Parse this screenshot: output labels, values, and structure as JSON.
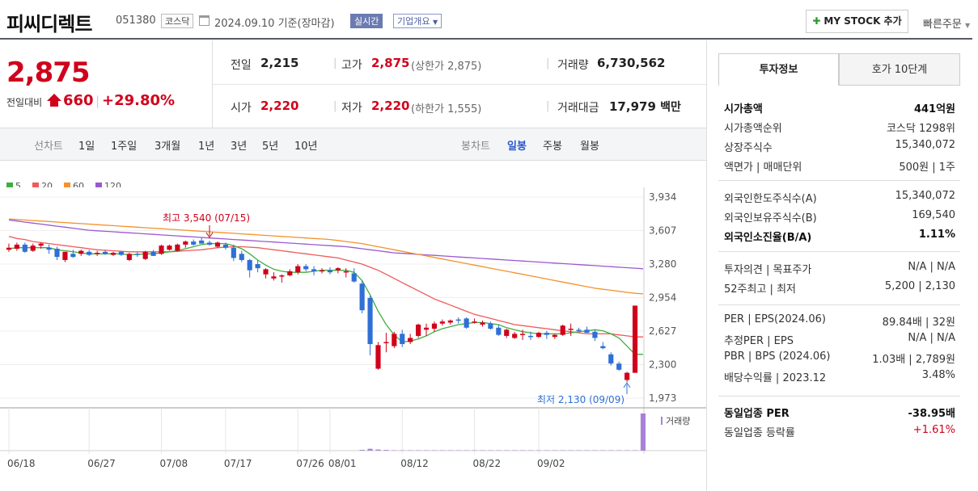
{
  "header": {
    "name": "피씨디렉트",
    "code": "051380",
    "market": "코스닥",
    "date": "2024.09.10",
    "basis": "기준(장마감)",
    "realtime_label": "실시간",
    "corp_label": "기업개요",
    "mystock_label": "MY STOCK 추가",
    "quick_label": "빠른주문"
  },
  "quote": {
    "price": "2,875",
    "change_label": "전일대비",
    "change": "660",
    "change_pct": "+29.80%",
    "prev_close_label": "전일",
    "prev_close": "2,215",
    "high_label": "고가",
    "high": "2,875",
    "upper_limit_label": "(상한가",
    "upper_limit": "2,875)",
    "volume_label": "거래량",
    "volume": "6,730,562",
    "open_label": "시가",
    "open": "2,220",
    "low_label": "저가",
    "low": "2,220",
    "lower_limit_label": "(하한가",
    "lower_limit": "1,555)",
    "amount_label": "거래대금",
    "amount": "17,979",
    "amount_unit": "백만"
  },
  "period_bar": {
    "line_label": "선차트",
    "line_items": [
      "1일",
      "1주일",
      "3개월",
      "1년",
      "3년",
      "5년",
      "10년"
    ],
    "candle_label": "봉차트",
    "candle_items": [
      "일봉",
      "주봉",
      "월봉"
    ],
    "active_candle": "일봉"
  },
  "colors": {
    "up": "#d0021b",
    "down": "#2f6fd6",
    "ma5": "#3fae3f",
    "ma20": "#f05a5a",
    "ma60": "#f4922b",
    "ma120": "#9b59d0",
    "volume": "#a882d6"
  },
  "chart_data": {
    "type": "candlestick",
    "legend": [
      {
        "name": "5",
        "color": "#3fae3f"
      },
      {
        "name": "20",
        "color": "#f05a5a"
      },
      {
        "name": "60",
        "color": "#f4922b"
      },
      {
        "name": "120",
        "color": "#9b59d0"
      }
    ],
    "y_ticks": [
      "3,934",
      "3,607",
      "3,280",
      "2,954",
      "2,627",
      "2,300",
      "1,973"
    ],
    "ylim": [
      1973,
      3934
    ],
    "x_ticks": [
      "06/18",
      "06/27",
      "07/08",
      "07/17",
      "07/26",
      "08/01",
      "08/12",
      "08/22",
      "09/02"
    ],
    "annotations": {
      "high": "최고 3,540 (07/15)",
      "low": "최저 2,130 (09/09)"
    },
    "volume_label": "거래량",
    "candles": [
      {
        "o": 3420,
        "h": 3480,
        "l": 3400,
        "c": 3440
      },
      {
        "o": 3430,
        "h": 3490,
        "l": 3410,
        "c": 3470
      },
      {
        "o": 3470,
        "h": 3490,
        "l": 3390,
        "c": 3400
      },
      {
        "o": 3410,
        "h": 3480,
        "l": 3400,
        "c": 3460
      },
      {
        "o": 3460,
        "h": 3490,
        "l": 3430,
        "c": 3480
      },
      {
        "o": 3440,
        "h": 3470,
        "l": 3380,
        "c": 3420
      },
      {
        "o": 3430,
        "h": 3450,
        "l": 3320,
        "c": 3350
      },
      {
        "o": 3320,
        "h": 3400,
        "l": 3300,
        "c": 3400
      },
      {
        "o": 3380,
        "h": 3420,
        "l": 3340,
        "c": 3350
      },
      {
        "o": 3380,
        "h": 3420,
        "l": 3360,
        "c": 3410
      },
      {
        "o": 3400,
        "h": 3420,
        "l": 3360,
        "c": 3370
      },
      {
        "o": 3380,
        "h": 3410,
        "l": 3360,
        "c": 3390
      },
      {
        "o": 3400,
        "h": 3420,
        "l": 3370,
        "c": 3380
      },
      {
        "o": 3370,
        "h": 3400,
        "l": 3360,
        "c": 3390
      },
      {
        "o": 3400,
        "h": 3410,
        "l": 3360,
        "c": 3370
      },
      {
        "o": 3320,
        "h": 3390,
        "l": 3310,
        "c": 3380
      },
      {
        "o": 3380,
        "h": 3400,
        "l": 3350,
        "c": 3370
      },
      {
        "o": 3330,
        "h": 3410,
        "l": 3320,
        "c": 3400
      },
      {
        "o": 3400,
        "h": 3420,
        "l": 3360,
        "c": 3360
      },
      {
        "o": 3380,
        "h": 3470,
        "l": 3370,
        "c": 3460
      },
      {
        "o": 3420,
        "h": 3470,
        "l": 3410,
        "c": 3460
      },
      {
        "o": 3410,
        "h": 3480,
        "l": 3400,
        "c": 3470
      },
      {
        "o": 3470,
        "h": 3510,
        "l": 3440,
        "c": 3500
      },
      {
        "o": 3500,
        "h": 3520,
        "l": 3460,
        "c": 3470
      },
      {
        "o": 3510,
        "h": 3540,
        "l": 3480,
        "c": 3480
      },
      {
        "o": 3490,
        "h": 3510,
        "l": 3460,
        "c": 3470
      },
      {
        "o": 3450,
        "h": 3500,
        "l": 3440,
        "c": 3490
      },
      {
        "o": 3470,
        "h": 3490,
        "l": 3420,
        "c": 3440
      },
      {
        "o": 3440,
        "h": 3470,
        "l": 3310,
        "c": 3340
      },
      {
        "o": 3380,
        "h": 3410,
        "l": 3300,
        "c": 3320
      },
      {
        "o": 3320,
        "h": 3330,
        "l": 3150,
        "c": 3220
      },
      {
        "o": 3280,
        "h": 3320,
        "l": 3200,
        "c": 3240
      },
      {
        "o": 3180,
        "h": 3240,
        "l": 3140,
        "c": 3230
      },
      {
        "o": 3140,
        "h": 3200,
        "l": 3120,
        "c": 3160
      },
      {
        "o": 3160,
        "h": 3180,
        "l": 3100,
        "c": 3170
      },
      {
        "o": 3170,
        "h": 3230,
        "l": 3160,
        "c": 3210
      },
      {
        "o": 3200,
        "h": 3280,
        "l": 3180,
        "c": 3260
      },
      {
        "o": 3260,
        "h": 3280,
        "l": 3210,
        "c": 3230
      },
      {
        "o": 3230,
        "h": 3260,
        "l": 3170,
        "c": 3210
      },
      {
        "o": 3210,
        "h": 3240,
        "l": 3190,
        "c": 3220
      },
      {
        "o": 3220,
        "h": 3250,
        "l": 3180,
        "c": 3200
      },
      {
        "o": 3220,
        "h": 3250,
        "l": 3190,
        "c": 3240
      },
      {
        "o": 3200,
        "h": 3240,
        "l": 3150,
        "c": 3210
      },
      {
        "o": 3190,
        "h": 3240,
        "l": 3100,
        "c": 3110
      },
      {
        "o": 3090,
        "h": 3120,
        "l": 2800,
        "c": 2830
      },
      {
        "o": 2950,
        "h": 2970,
        "l": 2390,
        "c": 2500
      },
      {
        "o": 2260,
        "h": 2520,
        "l": 2250,
        "c": 2490
      },
      {
        "o": 2520,
        "h": 2610,
        "l": 2420,
        "c": 2520
      },
      {
        "o": 2480,
        "h": 2620,
        "l": 2460,
        "c": 2600
      },
      {
        "o": 2600,
        "h": 2640,
        "l": 2470,
        "c": 2500
      },
      {
        "o": 2520,
        "h": 2600,
        "l": 2500,
        "c": 2560
      },
      {
        "o": 2580,
        "h": 2700,
        "l": 2560,
        "c": 2690
      },
      {
        "o": 2640,
        "h": 2700,
        "l": 2580,
        "c": 2660
      },
      {
        "o": 2650,
        "h": 2720,
        "l": 2620,
        "c": 2700
      },
      {
        "o": 2700,
        "h": 2740,
        "l": 2680,
        "c": 2720
      },
      {
        "o": 2710,
        "h": 2740,
        "l": 2690,
        "c": 2730
      },
      {
        "o": 2740,
        "h": 2760,
        "l": 2700,
        "c": 2730
      },
      {
        "o": 2750,
        "h": 2760,
        "l": 2650,
        "c": 2660
      },
      {
        "o": 2720,
        "h": 2750,
        "l": 2700,
        "c": 2720
      },
      {
        "o": 2690,
        "h": 2730,
        "l": 2670,
        "c": 2710
      },
      {
        "o": 2700,
        "h": 2720,
        "l": 2640,
        "c": 2650
      },
      {
        "o": 2660,
        "h": 2690,
        "l": 2580,
        "c": 2590
      },
      {
        "o": 2580,
        "h": 2650,
        "l": 2560,
        "c": 2640
      },
      {
        "o": 2560,
        "h": 2620,
        "l": 2550,
        "c": 2600
      },
      {
        "o": 2590,
        "h": 2640,
        "l": 2540,
        "c": 2600
      },
      {
        "o": 2580,
        "h": 2620,
        "l": 2540,
        "c": 2570
      },
      {
        "o": 2570,
        "h": 2620,
        "l": 2560,
        "c": 2610
      },
      {
        "o": 2610,
        "h": 2630,
        "l": 2550,
        "c": 2590
      },
      {
        "o": 2570,
        "h": 2600,
        "l": 2550,
        "c": 2590
      },
      {
        "o": 2590,
        "h": 2690,
        "l": 2580,
        "c": 2680
      },
      {
        "o": 2650,
        "h": 2700,
        "l": 2580,
        "c": 2650
      },
      {
        "o": 2640,
        "h": 2660,
        "l": 2620,
        "c": 2630
      },
      {
        "o": 2640,
        "h": 2670,
        "l": 2610,
        "c": 2610
      },
      {
        "o": 2620,
        "h": 2640,
        "l": 2530,
        "c": 2560
      },
      {
        "o": 2480,
        "h": 2520,
        "l": 2450,
        "c": 2460
      },
      {
        "o": 2400,
        "h": 2420,
        "l": 2290,
        "c": 2310
      },
      {
        "o": 2310,
        "h": 2330,
        "l": 2240,
        "c": 2250
      },
      {
        "o": 2150,
        "h": 2230,
        "l": 2130,
        "c": 2220
      },
      {
        "o": 2220,
        "h": 2875,
        "l": 2220,
        "c": 2875
      }
    ],
    "ma5": [
      3430,
      3440,
      3440,
      3440,
      3440,
      3440,
      3420,
      3410,
      3400,
      3390,
      3380,
      3380,
      3380,
      3380,
      3380,
      3370,
      3375,
      3380,
      3380,
      3390,
      3400,
      3410,
      3430,
      3450,
      3470,
      3480,
      3480,
      3480,
      3460,
      3430,
      3380,
      3320,
      3270,
      3230,
      3210,
      3200,
      3200,
      3200,
      3210,
      3220,
      3220,
      3220,
      3220,
      3200,
      3120,
      2980,
      2820,
      2690,
      2590,
      2520,
      2530,
      2550,
      2580,
      2620,
      2650,
      2670,
      2690,
      2700,
      2710,
      2710,
      2700,
      2690,
      2660,
      2640,
      2620,
      2610,
      2600,
      2600,
      2600,
      2600,
      2610,
      2620,
      2630,
      2640,
      2630,
      2600,
      2560,
      2480,
      2400,
      2400
    ],
    "ma20": [
      3550,
      3530,
      3520,
      3500,
      3490,
      3480,
      3470,
      3460,
      3450,
      3440,
      3430,
      3420,
      3415,
      3410,
      3405,
      3400,
      3400,
      3400,
      3400,
      3400,
      3400,
      3405,
      3410,
      3415,
      3420,
      3430,
      3440,
      3445,
      3450,
      3450,
      3445,
      3440,
      3430,
      3420,
      3410,
      3400,
      3390,
      3380,
      3370,
      3360,
      3350,
      3340,
      3320,
      3300,
      3280,
      3250,
      3220,
      3180,
      3140,
      3100,
      3060,
      3020,
      2980,
      2940,
      2910,
      2880,
      2850,
      2820,
      2790,
      2770,
      2750,
      2730,
      2710,
      2690,
      2680,
      2670,
      2660,
      2650,
      2640,
      2630,
      2620,
      2610,
      2600,
      2600,
      2600,
      2600,
      2590,
      2580,
      2570,
      2570
    ],
    "ma60": [
      3720,
      3715,
      3710,
      3705,
      3700,
      3695,
      3690,
      3685,
      3680,
      3675,
      3670,
      3665,
      3660,
      3655,
      3650,
      3645,
      3640,
      3635,
      3630,
      3625,
      3620,
      3615,
      3610,
      3605,
      3600,
      3595,
      3590,
      3585,
      3580,
      3575,
      3570,
      3565,
      3560,
      3555,
      3550,
      3545,
      3540,
      3535,
      3530,
      3525,
      3520,
      3510,
      3500,
      3490,
      3480,
      3465,
      3450,
      3435,
      3420,
      3405,
      3390,
      3375,
      3360,
      3345,
      3330,
      3315,
      3300,
      3285,
      3270,
      3255,
      3240,
      3225,
      3210,
      3195,
      3180,
      3165,
      3150,
      3135,
      3120,
      3105,
      3090,
      3075,
      3060,
      3045,
      3035,
      3025,
      3015,
      3005,
      2995,
      2990
    ],
    "ma120": [
      3710,
      3700,
      3690,
      3680,
      3670,
      3660,
      3650,
      3640,
      3630,
      3620,
      3610,
      3605,
      3600,
      3595,
      3590,
      3585,
      3580,
      3575,
      3570,
      3565,
      3560,
      3555,
      3550,
      3545,
      3540,
      3535,
      3530,
      3525,
      3520,
      3515,
      3510,
      3505,
      3500,
      3495,
      3490,
      3485,
      3480,
      3475,
      3470,
      3465,
      3460,
      3455,
      3450,
      3440,
      3430,
      3420,
      3410,
      3400,
      3390,
      3385,
      3380,
      3375,
      3370,
      3365,
      3360,
      3355,
      3350,
      3345,
      3340,
      3335,
      3330,
      3325,
      3320,
      3315,
      3310,
      3305,
      3300,
      3295,
      3290,
      3285,
      3280,
      3275,
      3270,
      3265,
      3260,
      3255,
      3250,
      3245,
      3240,
      3235
    ],
    "volume": [
      0.005,
      0.005,
      0.005,
      0.005,
      0.005,
      0.005,
      0.005,
      0.005,
      0.005,
      0.005,
      0.005,
      0.005,
      0.005,
      0.005,
      0.005,
      0.005,
      0.005,
      0.005,
      0.005,
      0.005,
      0.005,
      0.005,
      0.005,
      0.005,
      0.005,
      0.005,
      0.005,
      0.005,
      0.005,
      0.005,
      0.005,
      0.005,
      0.005,
      0.005,
      0.005,
      0.005,
      0.005,
      0.005,
      0.005,
      0.005,
      0.005,
      0.005,
      0.005,
      0.005,
      0.02,
      0.05,
      0.03,
      0.02,
      0.01,
      0.01,
      0.01,
      0.01,
      0.01,
      0.01,
      0.01,
      0.01,
      0.01,
      0.01,
      0.01,
      0.01,
      0.01,
      0.01,
      0.01,
      0.01,
      0.01,
      0.01,
      0.01,
      0.01,
      0.01,
      0.01,
      0.01,
      0.01,
      0.01,
      0.01,
      0.01,
      0.01,
      0.01,
      0.01,
      0.01,
      1.0
    ]
  },
  "invest": {
    "tab_info": "투자정보",
    "tab_orderbook": "호가 10단계",
    "rows1": [
      {
        "label": "시가총액",
        "value": "441억원",
        "bold": true
      },
      {
        "label": "시가총액순위",
        "value": "코스닥 1298위"
      },
      {
        "label": "상장주식수",
        "value": "15,340,072"
      },
      {
        "label": "액면가 | 매매단위",
        "value": "500원 | 1주"
      }
    ],
    "rows2": [
      {
        "label": "외국인한도주식수(A)",
        "value": "15,340,072"
      },
      {
        "label": "외국인보유주식수(B)",
        "value": "169,540"
      },
      {
        "label": "외국인소진율(B/A)",
        "value": "1.11%",
        "bold": true
      }
    ],
    "rows3": [
      {
        "label": "투자의견 | 목표주가",
        "value": "N/A | N/A"
      },
      {
        "label": "52주최고 | 최저",
        "value": "5,200 | 2,130"
      }
    ],
    "rows4": [
      {
        "label": "PER | EPS(2024.06)",
        "value": "89.84배 | 32원"
      },
      {
        "label": "추정PER | EPS",
        "value": "N/A | N/A"
      },
      {
        "label": "PBR | BPS (2024.06)",
        "value": "1.03배 | 2,789원"
      },
      {
        "label": "배당수익률 | 2023.12",
        "value": "3.48%"
      }
    ],
    "rows5": [
      {
        "label": "동일업종 PER",
        "value": "-38.95배",
        "bold": true
      },
      {
        "label": "동일업종 등락률",
        "value": "+1.61%",
        "red": true
      }
    ]
  }
}
